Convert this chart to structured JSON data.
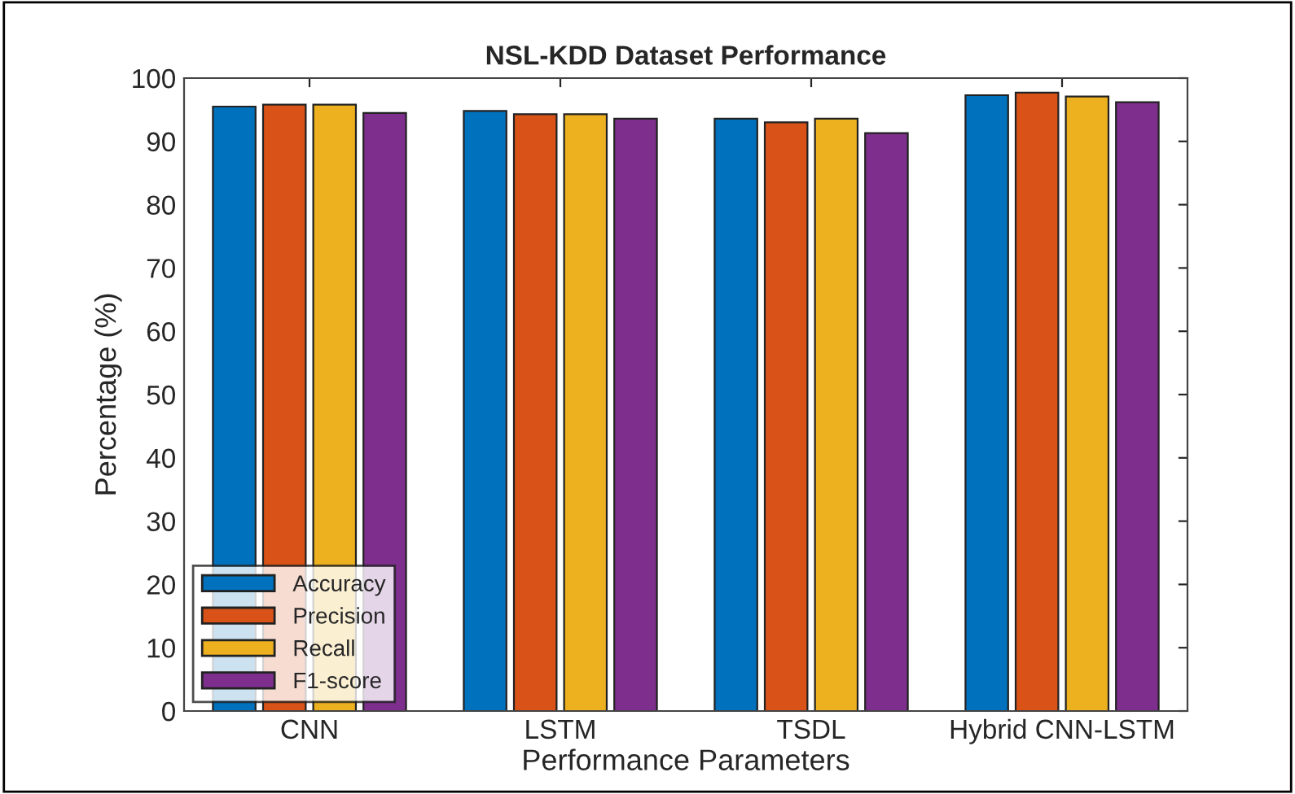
{
  "chart_data": {
    "type": "bar",
    "title": "NSL-KDD Dataset Performance",
    "xlabel": "Performance Parameters",
    "ylabel": "Percentage (%)",
    "categories": [
      "CNN",
      "LSTM",
      "TSDL",
      "Hybrid CNN-LSTM"
    ],
    "series": [
      {
        "name": "Accuracy",
        "color": "#0072bd",
        "values": [
          95.5,
          94.8,
          93.6,
          97.3
        ]
      },
      {
        "name": "Precision",
        "color": "#d95319",
        "values": [
          95.8,
          94.3,
          93.0,
          97.7
        ]
      },
      {
        "name": "Recall",
        "color": "#edb120",
        "values": [
          95.8,
          94.3,
          93.6,
          97.1
        ]
      },
      {
        "name": "F1-score",
        "color": "#7e2f8e",
        "values": [
          94.5,
          93.6,
          91.3,
          96.2
        ]
      }
    ],
    "ylim": [
      0,
      100
    ],
    "yticks": [
      0,
      10,
      20,
      30,
      40,
      50,
      60,
      70,
      80,
      90,
      100
    ],
    "grid": false,
    "legend": "bottom left"
  }
}
